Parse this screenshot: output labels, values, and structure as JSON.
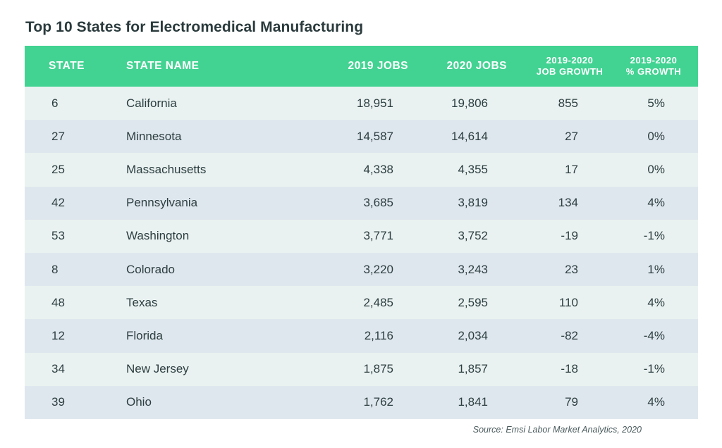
{
  "title": "Top 10 States for Electromedical Manufacturing",
  "source": "Source: Emsi Labor Market Analytics, 2020",
  "colors": {
    "header_bg": "#42d392",
    "row_light": "#eaf2f1",
    "row_dark": "#dfe7ee"
  },
  "chart_data": {
    "type": "table",
    "title": "Top 10 States for Electromedical Manufacturing",
    "columns": [
      "STATE",
      "STATE NAME",
      "2019 JOBS",
      "2020 JOBS",
      "2019-2020 JOB GROWTH",
      "2019-2020 % GROWTH"
    ],
    "header": {
      "state": "STATE",
      "name": "STATE NAME",
      "jobs2019": "2019 JOBS",
      "jobs2020": "2020 JOBS",
      "growth_l1": "2019-2020",
      "growth_l2": "JOB GROWTH",
      "pct_l1": "2019-2020",
      "pct_l2": "% GROWTH"
    },
    "rows": [
      {
        "state": "6",
        "name": "California",
        "jobs2019": "18,951",
        "jobs2020": "19,806",
        "growth": "855",
        "pct": "5%"
      },
      {
        "state": "27",
        "name": "Minnesota",
        "jobs2019": "14,587",
        "jobs2020": "14,614",
        "growth": "27",
        "pct": "0%"
      },
      {
        "state": "25",
        "name": "Massachusetts",
        "jobs2019": "4,338",
        "jobs2020": "4,355",
        "growth": "17",
        "pct": "0%"
      },
      {
        "state": "42",
        "name": "Pennsylvania",
        "jobs2019": "3,685",
        "jobs2020": "3,819",
        "growth": "134",
        "pct": "4%"
      },
      {
        "state": "53",
        "name": "Washington",
        "jobs2019": "3,771",
        "jobs2020": "3,752",
        "growth": "-19",
        "pct": "-1%"
      },
      {
        "state": "8",
        "name": "Colorado",
        "jobs2019": "3,220",
        "jobs2020": "3,243",
        "growth": "23",
        "pct": "1%"
      },
      {
        "state": "48",
        "name": "Texas",
        "jobs2019": "2,485",
        "jobs2020": "2,595",
        "growth": "110",
        "pct": "4%"
      },
      {
        "state": "12",
        "name": "Florida",
        "jobs2019": "2,116",
        "jobs2020": "2,034",
        "growth": "-82",
        "pct": "-4%"
      },
      {
        "state": "34",
        "name": "New Jersey",
        "jobs2019": "1,875",
        "jobs2020": "1,857",
        "growth": "-18",
        "pct": "-1%"
      },
      {
        "state": "39",
        "name": "Ohio",
        "jobs2019": "1,762",
        "jobs2020": "1,841",
        "growth": "79",
        "pct": "4%"
      }
    ]
  }
}
